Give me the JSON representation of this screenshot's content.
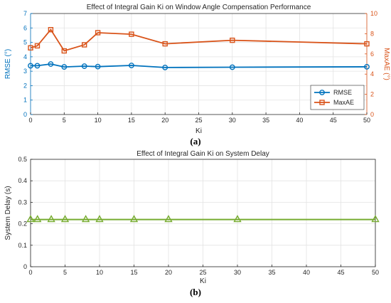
{
  "chart_data": [
    {
      "type": "line",
      "panel_label": "(a)",
      "title": "Effect of Integral Gain Ki on Window Angle Compensation Performance",
      "xlabel": "Ki",
      "ylabel_left": "RMSE (°)",
      "ylabel_right": "MaxAE (°)",
      "xlim": [
        0,
        50
      ],
      "ylim_left": [
        0,
        7
      ],
      "ylim_right": [
        0,
        10
      ],
      "xticks": [
        "0",
        "5",
        "10",
        "15",
        "20",
        "25",
        "30",
        "35",
        "40",
        "45",
        "50"
      ],
      "yticks_left": [
        "0",
        "1",
        "2",
        "3",
        "4",
        "5",
        "6",
        "7"
      ],
      "yticks_right": [
        "0",
        "2",
        "4",
        "6",
        "8",
        "10"
      ],
      "grid": true,
      "legend_position": "bottom-right",
      "series": [
        {
          "name": "RMSE",
          "axis": "left",
          "marker": "circle",
          "color": "#0072BD",
          "x": [
            0,
            1,
            3,
            5,
            8,
            10,
            15,
            20,
            30,
            50
          ],
          "values": [
            3.38,
            3.38,
            3.5,
            3.3,
            3.35,
            3.32,
            3.4,
            3.26,
            3.28,
            3.31
          ]
        },
        {
          "name": "MaxAE",
          "axis": "right",
          "marker": "square",
          "color": "#D95319",
          "x": [
            0,
            1,
            3,
            5,
            8,
            10,
            15,
            20,
            30,
            50
          ],
          "values": [
            6.6,
            6.8,
            8.4,
            6.3,
            6.9,
            8.1,
            7.95,
            7.0,
            7.35,
            7.0
          ]
        }
      ]
    },
    {
      "type": "line",
      "panel_label": "(b)",
      "title": "Effect of Integral Gain Ki on System Delay",
      "xlabel": "Ki",
      "ylabel": "System Delay (s)",
      "xlim": [
        0,
        50
      ],
      "ylim": [
        0,
        0.5
      ],
      "xticks": [
        "0",
        "5",
        "10",
        "15",
        "20",
        "25",
        "30",
        "35",
        "40",
        "45",
        "50"
      ],
      "yticks": [
        "0",
        "0.1",
        "0.2",
        "0.3",
        "0.4",
        "0.5"
      ],
      "grid": true,
      "series": [
        {
          "marker": "triangle",
          "color": "#77AC30",
          "x": [
            0,
            1,
            3,
            5,
            8,
            10,
            15,
            20,
            30,
            50
          ],
          "values": [
            0.22,
            0.22,
            0.22,
            0.22,
            0.22,
            0.22,
            0.22,
            0.22,
            0.22,
            0.22
          ]
        }
      ]
    }
  ]
}
